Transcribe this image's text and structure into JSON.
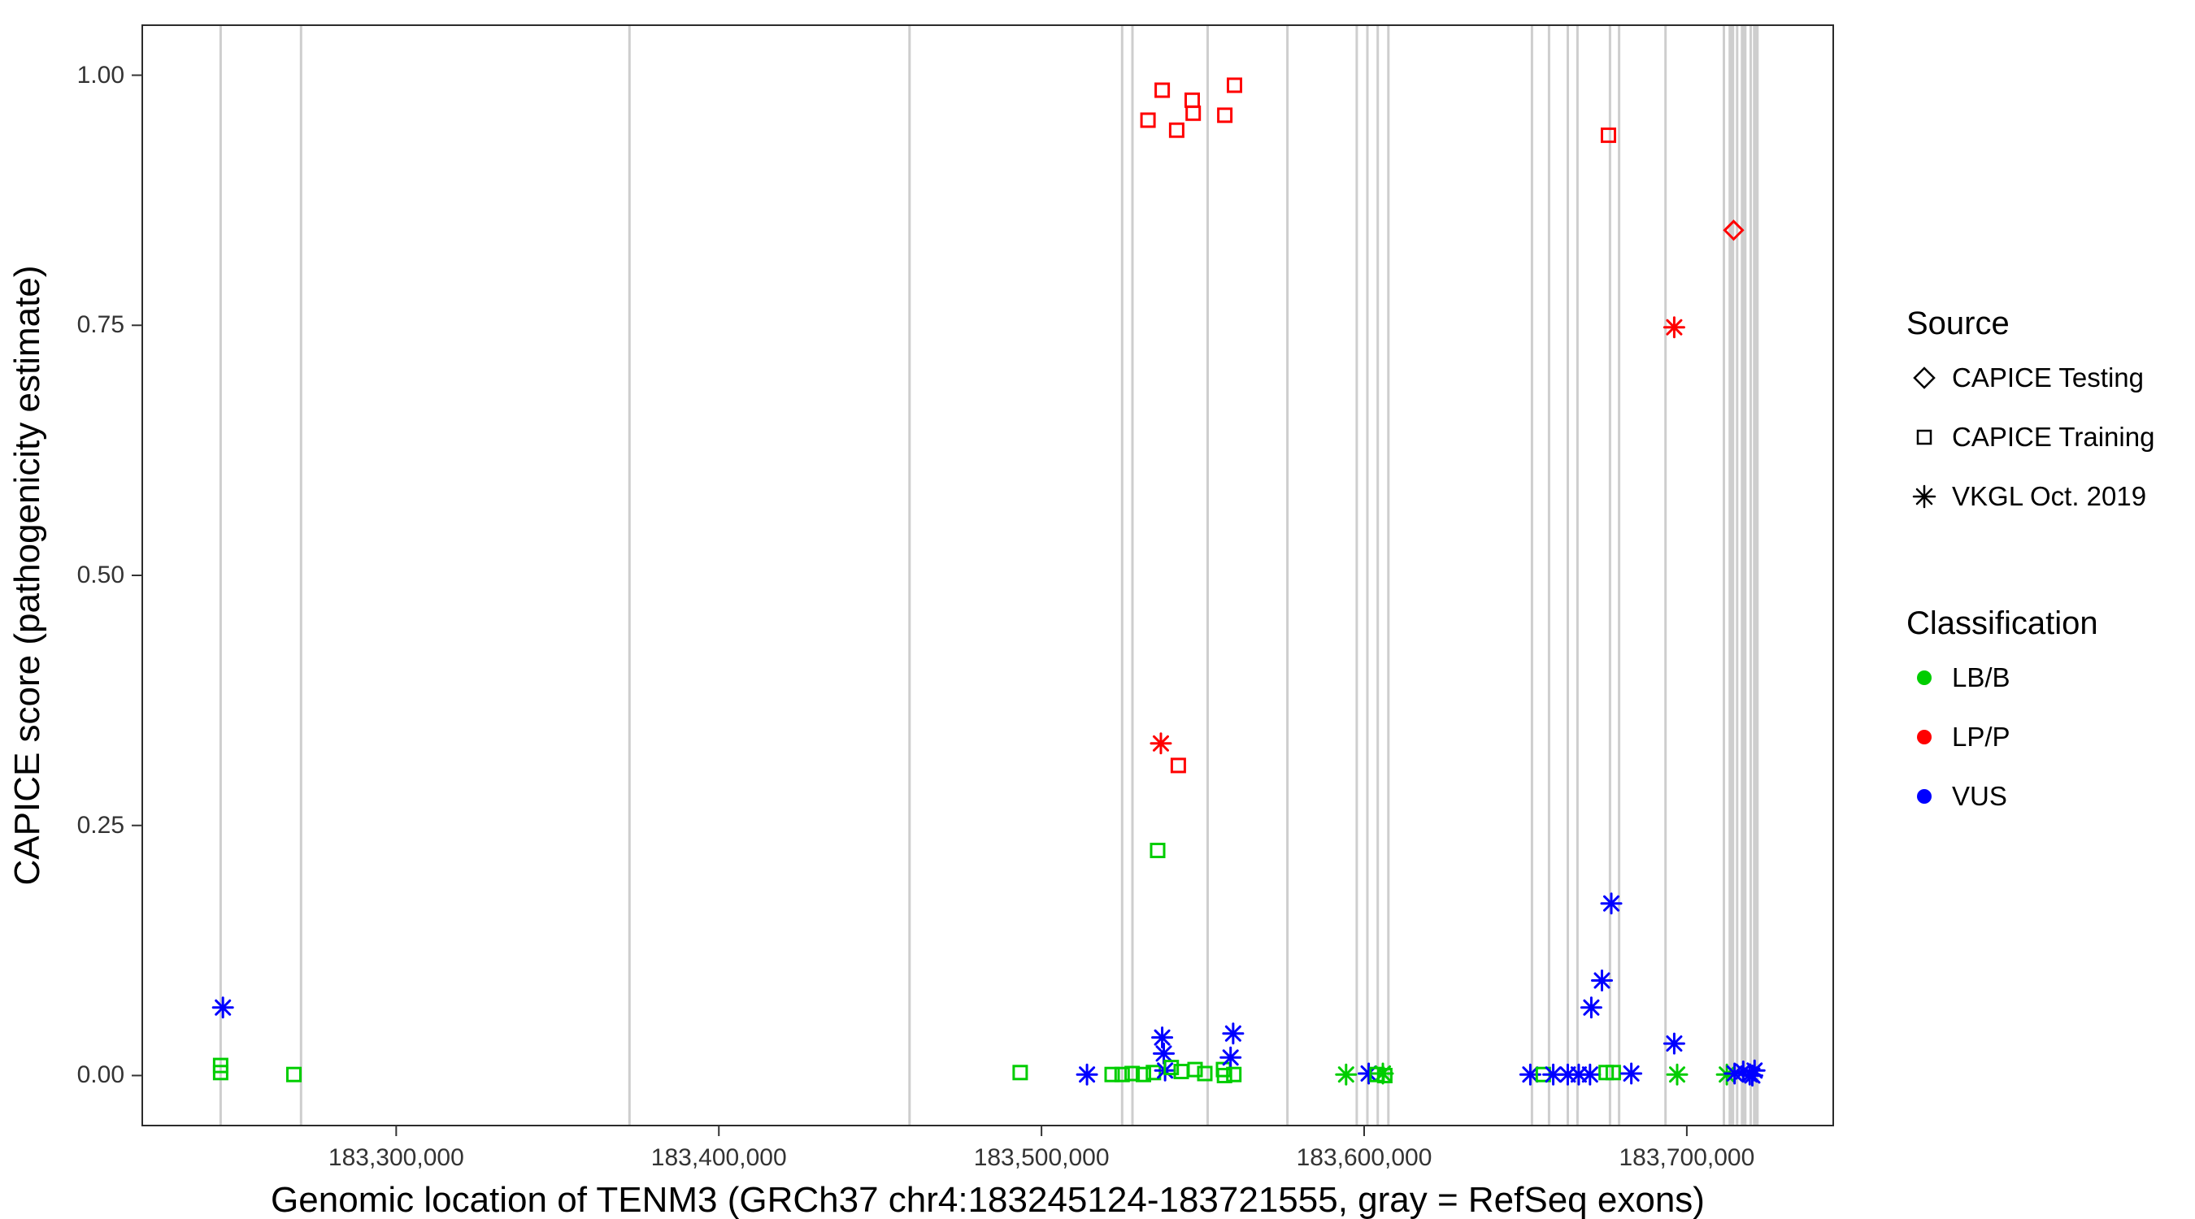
{
  "figure": {
    "background": "#FFFFFF",
    "panel_border_color": "#2b2b2b",
    "exon_line_color": "#ADADAD",
    "axis_text_color": "#333333"
  },
  "chart_data": {
    "type": "scatter",
    "title": "",
    "xlabel": "Genomic location of TENM3 (GRCh37 chr4:183245124-183721555, gray = RefSeq exons)",
    "ylabel": "CAPICE score (pathogenicity estimate)",
    "x_domain": [
      183221302,
      183745377
    ],
    "y_domain": [
      -0.05,
      1.05
    ],
    "grid": "off",
    "legend_position": "right",
    "x_ticks": [
      {
        "value": 183300000,
        "label": "183,300,000"
      },
      {
        "value": 183400000,
        "label": "183,400,000"
      },
      {
        "value": 183500000,
        "label": "183,500,000"
      },
      {
        "value": 183600000,
        "label": "183,600,000"
      },
      {
        "value": 183700000,
        "label": "183,700,000"
      }
    ],
    "y_ticks": [
      {
        "value": 0.0,
        "label": "0.00"
      },
      {
        "value": 0.25,
        "label": "0.25"
      },
      {
        "value": 0.5,
        "label": "0.50"
      },
      {
        "value": 0.75,
        "label": "0.75"
      },
      {
        "value": 1.0,
        "label": "1.00"
      }
    ],
    "shape_by_source": {
      "CAPICE Testing": "diamond",
      "CAPICE Training": "square",
      "VKGL Oct. 2019": "asterisk"
    },
    "color_by_class": {
      "LB/B": "#00CD00",
      "LP/P": "#FF0000",
      "VUS": "#0000FF"
    },
    "exons": [
      {
        "pos": 183245600,
        "weight": 1
      },
      {
        "pos": 183270500,
        "weight": 1
      },
      {
        "pos": 183372300,
        "weight": 1
      },
      {
        "pos": 183459100,
        "weight": 1
      },
      {
        "pos": 183525000,
        "weight": 1
      },
      {
        "pos": 183528200,
        "weight": 1
      },
      {
        "pos": 183551500,
        "weight": 1
      },
      {
        "pos": 183576200,
        "weight": 1
      },
      {
        "pos": 183597700,
        "weight": 1
      },
      {
        "pos": 183601000,
        "weight": 1
      },
      {
        "pos": 183604200,
        "weight": 1
      },
      {
        "pos": 183607500,
        "weight": 1
      },
      {
        "pos": 183652000,
        "weight": 1
      },
      {
        "pos": 183657300,
        "weight": 1
      },
      {
        "pos": 183663100,
        "weight": 1
      },
      {
        "pos": 183666100,
        "weight": 1
      },
      {
        "pos": 183676200,
        "weight": 1
      },
      {
        "pos": 183679000,
        "weight": 1
      },
      {
        "pos": 183693400,
        "weight": 1
      },
      {
        "pos": 183711500,
        "weight": 1
      },
      {
        "pos": 183713800,
        "weight": 2
      },
      {
        "pos": 183715600,
        "weight": 1
      },
      {
        "pos": 183717600,
        "weight": 2
      },
      {
        "pos": 183719800,
        "weight": 1
      },
      {
        "pos": 183721400,
        "weight": 2
      }
    ],
    "points": [
      {
        "x": 183533000,
        "y": 0.955,
        "source": "CAPICE Training",
        "class": "LP/P"
      },
      {
        "x": 183537400,
        "y": 0.985,
        "source": "CAPICE Training",
        "class": "LP/P"
      },
      {
        "x": 183541900,
        "y": 0.945,
        "source": "CAPICE Training",
        "class": "LP/P"
      },
      {
        "x": 183546700,
        "y": 0.975,
        "source": "CAPICE Training",
        "class": "LP/P"
      },
      {
        "x": 183547000,
        "y": 0.962,
        "source": "CAPICE Training",
        "class": "LP/P"
      },
      {
        "x": 183556800,
        "y": 0.96,
        "source": "CAPICE Training",
        "class": "LP/P"
      },
      {
        "x": 183559800,
        "y": 0.99,
        "source": "CAPICE Training",
        "class": "LP/P"
      },
      {
        "x": 183675700,
        "y": 0.94,
        "source": "CAPICE Training",
        "class": "LP/P"
      },
      {
        "x": 183714500,
        "y": 0.845,
        "source": "CAPICE Testing",
        "class": "LP/P"
      },
      {
        "x": 183696100,
        "y": 0.748,
        "source": "VKGL Oct. 2019",
        "class": "LP/P"
      },
      {
        "x": 183537000,
        "y": 0.332,
        "source": "VKGL Oct. 2019",
        "class": "LP/P"
      },
      {
        "x": 183542400,
        "y": 0.31,
        "source": "CAPICE Training",
        "class": "LP/P"
      },
      {
        "x": 183536000,
        "y": 0.225,
        "source": "CAPICE Training",
        "class": "LB/B"
      },
      {
        "x": 183245600,
        "y": 0.01,
        "source": "CAPICE Training",
        "class": "LB/B"
      },
      {
        "x": 183245600,
        "y": 0.003,
        "source": "CAPICE Training",
        "class": "LB/B"
      },
      {
        "x": 183268300,
        "y": 0.001,
        "source": "CAPICE Training",
        "class": "LB/B"
      },
      {
        "x": 183493400,
        "y": 0.003,
        "source": "CAPICE Training",
        "class": "LB/B"
      },
      {
        "x": 183514100,
        "y": 0.001,
        "source": "VKGL Oct. 2019",
        "class": "VUS"
      },
      {
        "x": 183521900,
        "y": 0.001,
        "source": "CAPICE Training",
        "class": "LB/B"
      },
      {
        "x": 183525000,
        "y": 0.001,
        "source": "CAPICE Training",
        "class": "LB/B"
      },
      {
        "x": 183528100,
        "y": 0.002,
        "source": "CAPICE Training",
        "class": "LB/B"
      },
      {
        "x": 183531600,
        "y": 0.001,
        "source": "CAPICE Training",
        "class": "LB/B"
      },
      {
        "x": 183534700,
        "y": 0.003,
        "source": "CAPICE Training",
        "class": "LB/B"
      },
      {
        "x": 183537400,
        "y": 0.038,
        "source": "VKGL Oct. 2019",
        "class": "VUS"
      },
      {
        "x": 183537900,
        "y": 0.022,
        "source": "VKGL Oct. 2019",
        "class": "VUS"
      },
      {
        "x": 183538300,
        "y": 0.005,
        "source": "VKGL Oct. 2019",
        "class": "VUS"
      },
      {
        "x": 183540200,
        "y": 0.008,
        "source": "CAPICE Training",
        "class": "LB/B"
      },
      {
        "x": 183543300,
        "y": 0.004,
        "source": "CAPICE Training",
        "class": "LB/B"
      },
      {
        "x": 183547600,
        "y": 0.006,
        "source": "CAPICE Training",
        "class": "LB/B"
      },
      {
        "x": 183550600,
        "y": 0.002,
        "source": "CAPICE Training",
        "class": "LB/B"
      },
      {
        "x": 183556400,
        "y": 0.006,
        "source": "CAPICE Training",
        "class": "LB/B"
      },
      {
        "x": 183556700,
        "y": 0.0,
        "source": "CAPICE Training",
        "class": "LB/B"
      },
      {
        "x": 183558600,
        "y": 0.018,
        "source": "VKGL Oct. 2019",
        "class": "VUS"
      },
      {
        "x": 183559400,
        "y": 0.042,
        "source": "VKGL Oct. 2019",
        "class": "VUS"
      },
      {
        "x": 183559600,
        "y": 0.001,
        "source": "CAPICE Training",
        "class": "LB/B"
      },
      {
        "x": 183594400,
        "y": 0.001,
        "source": "VKGL Oct. 2019",
        "class": "LB/B"
      },
      {
        "x": 183601400,
        "y": 0.002,
        "source": "VKGL Oct. 2019",
        "class": "VUS"
      },
      {
        "x": 183604000,
        "y": 0.001,
        "source": "CAPICE Training",
        "class": "LB/B"
      },
      {
        "x": 183605800,
        "y": 0.002,
        "source": "VKGL Oct. 2019",
        "class": "LB/B"
      },
      {
        "x": 183606400,
        "y": 0.0,
        "source": "CAPICE Training",
        "class": "LB/B"
      },
      {
        "x": 183651500,
        "y": 0.001,
        "source": "VKGL Oct. 2019",
        "class": "VUS"
      },
      {
        "x": 183655500,
        "y": 0.001,
        "source": "CAPICE Training",
        "class": "LB/B"
      },
      {
        "x": 183658600,
        "y": 0.001,
        "source": "VKGL Oct. 2019",
        "class": "VUS"
      },
      {
        "x": 183663100,
        "y": 0.001,
        "source": "VKGL Oct. 2019",
        "class": "VUS"
      },
      {
        "x": 183666500,
        "y": 0.001,
        "source": "VKGL Oct. 2019",
        "class": "VUS"
      },
      {
        "x": 183670000,
        "y": 0.001,
        "source": "VKGL Oct. 2019",
        "class": "VUS"
      },
      {
        "x": 183670400,
        "y": 0.068,
        "source": "VKGL Oct. 2019",
        "class": "VUS"
      },
      {
        "x": 183673700,
        "y": 0.095,
        "source": "VKGL Oct. 2019",
        "class": "VUS"
      },
      {
        "x": 183676600,
        "y": 0.172,
        "source": "VKGL Oct. 2019",
        "class": "VUS"
      },
      {
        "x": 183675000,
        "y": 0.003,
        "source": "CAPICE Training",
        "class": "LB/B"
      },
      {
        "x": 183677200,
        "y": 0.003,
        "source": "CAPICE Training",
        "class": "LB/B"
      },
      {
        "x": 183682800,
        "y": 0.002,
        "source": "VKGL Oct. 2019",
        "class": "VUS"
      },
      {
        "x": 183696100,
        "y": 0.032,
        "source": "VKGL Oct. 2019",
        "class": "VUS"
      },
      {
        "x": 183697000,
        "y": 0.001,
        "source": "VKGL Oct. 2019",
        "class": "LB/B"
      },
      {
        "x": 183712400,
        "y": 0.001,
        "source": "VKGL Oct. 2019",
        "class": "LB/B"
      },
      {
        "x": 183714800,
        "y": 0.002,
        "source": "VKGL Oct. 2019",
        "class": "VUS"
      },
      {
        "x": 183717500,
        "y": 0.004,
        "source": "VKGL Oct. 2019",
        "class": "VUS"
      },
      {
        "x": 183719500,
        "y": 0.001,
        "source": "VKGL Oct. 2019",
        "class": "VUS"
      },
      {
        "x": 183721000,
        "y": 0.005,
        "source": "VKGL Oct. 2019",
        "class": "VUS"
      },
      {
        "x": 183720300,
        "y": 0.0,
        "source": "VKGL Oct. 2019",
        "class": "VUS"
      },
      {
        "x": 183246300,
        "y": 0.068,
        "source": "VKGL Oct. 2019",
        "class": "VUS"
      }
    ],
    "legend": {
      "source_title": "Source",
      "source_items": [
        {
          "label": "CAPICE Testing",
          "shape": "diamond"
        },
        {
          "label": "CAPICE Training",
          "shape": "square"
        },
        {
          "label": "VKGL Oct. 2019",
          "shape": "asterisk"
        }
      ],
      "class_title": "Classification",
      "class_items": [
        {
          "label": "LB/B",
          "color": "#00CD00"
        },
        {
          "label": "LP/P",
          "color": "#FF0000"
        },
        {
          "label": "VUS",
          "color": "#0000FF"
        }
      ]
    }
  }
}
